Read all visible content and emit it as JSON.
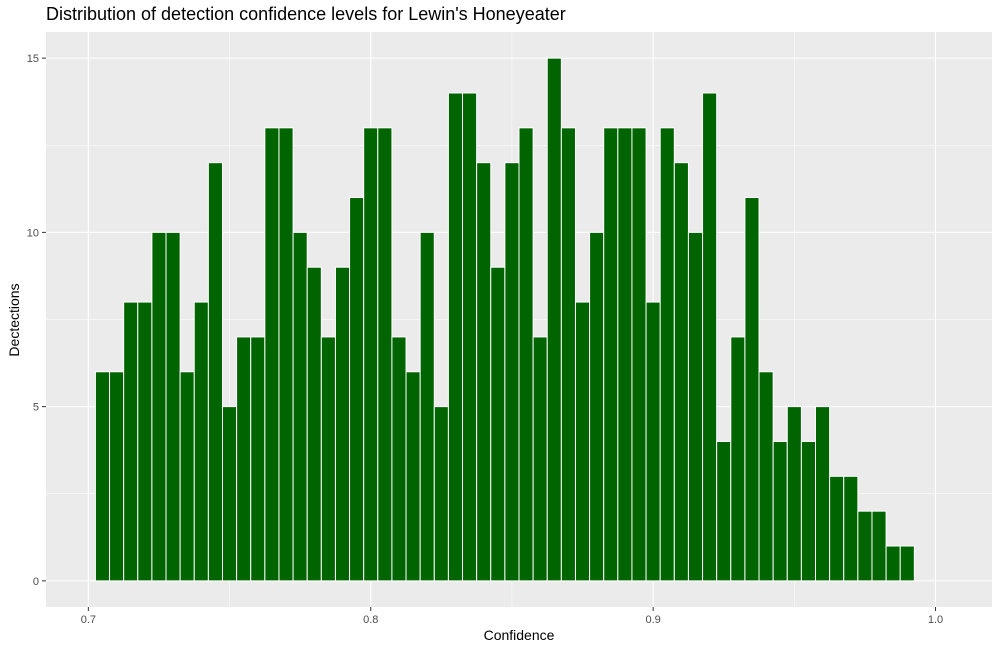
{
  "chart_data": {
    "type": "bar",
    "title": "Distribution of detection confidence levels for Lewin's Honeyeater",
    "xlabel": "Confidence",
    "ylabel": "Dectections",
    "xlim": [
      0.685,
      1.02
    ],
    "ylim": [
      -0.75,
      15.75
    ],
    "x_ticks": [
      0.7,
      0.8,
      0.9,
      1.0
    ],
    "x_tick_labels": [
      "0.7",
      "0.8",
      "0.9",
      "1.0"
    ],
    "y_ticks": [
      0,
      5,
      10,
      15
    ],
    "y_tick_labels": [
      "0",
      "5",
      "10",
      "15"
    ],
    "grid": true,
    "bin_width": 0.005,
    "x": [
      0.705,
      0.71,
      0.715,
      0.72,
      0.725,
      0.73,
      0.735,
      0.74,
      0.745,
      0.75,
      0.755,
      0.76,
      0.765,
      0.77,
      0.775,
      0.78,
      0.785,
      0.79,
      0.795,
      0.8,
      0.805,
      0.81,
      0.815,
      0.82,
      0.825,
      0.83,
      0.835,
      0.84,
      0.845,
      0.85,
      0.855,
      0.86,
      0.865,
      0.87,
      0.875,
      0.88,
      0.885,
      0.89,
      0.895,
      0.9,
      0.905,
      0.91,
      0.915,
      0.92,
      0.925,
      0.93,
      0.935,
      0.94,
      0.945,
      0.95,
      0.955,
      0.96,
      0.965,
      0.97,
      0.975,
      0.98,
      0.985,
      0.99
    ],
    "values": [
      6,
      6,
      8,
      8,
      10,
      10,
      6,
      8,
      12,
      5,
      7,
      7,
      13,
      13,
      10,
      9,
      7,
      9,
      11,
      13,
      13,
      7,
      6,
      10,
      5,
      14,
      14,
      12,
      9,
      12,
      13,
      7,
      15,
      13,
      8,
      10,
      13,
      13,
      13,
      8,
      13,
      12,
      10,
      14,
      4,
      7,
      11,
      6,
      4,
      5,
      4,
      5,
      3,
      3,
      2,
      2,
      1,
      1
    ],
    "colors": {
      "bar_fill": "#006400",
      "bar_outline": "#ffffff",
      "panel": "#ebebeb",
      "grid": "#ffffff"
    }
  }
}
